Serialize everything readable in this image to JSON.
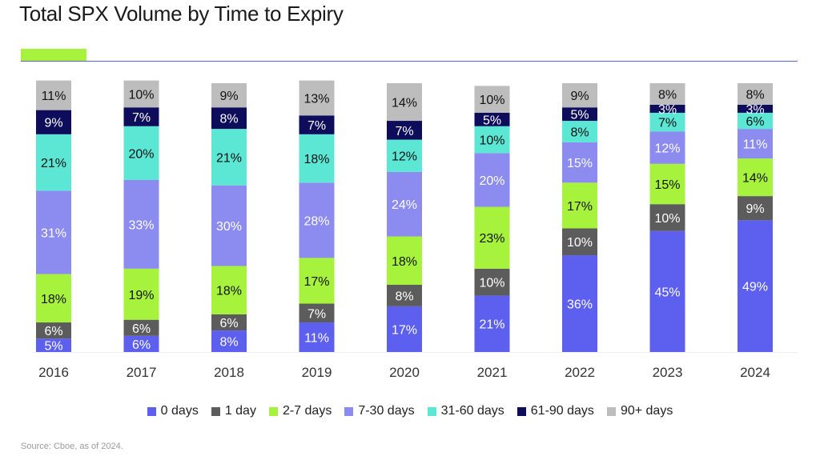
{
  "title": "Total SPX Volume by Time to Expiry",
  "source": "Source: Cboe, as of 2024.",
  "colors": {
    "accent": "#A6F23C",
    "rule": "#5D5FEF"
  },
  "chart_data": {
    "type": "bar",
    "stacked": true,
    "title": "Total SPX Volume by Time to Expiry",
    "xlabel": "",
    "ylabel": "",
    "ylim": [
      0,
      100
    ],
    "grid": false,
    "legend_position": "bottom",
    "categories": [
      "2016",
      "2017",
      "2018",
      "2019",
      "2020",
      "2021",
      "2022",
      "2023",
      "2024"
    ],
    "series": [
      {
        "name": "0 days",
        "color": "#5D5FEF",
        "label_color": "#ffffff",
        "values": [
          5,
          6,
          8,
          11,
          17,
          21,
          36,
          45,
          49
        ]
      },
      {
        "name": "1 day",
        "color": "#5C5C5C",
        "label_color": "#ffffff",
        "values": [
          6,
          6,
          6,
          7,
          8,
          10,
          10,
          10,
          9
        ]
      },
      {
        "name": "2-7 days",
        "color": "#A6F23C",
        "label_color": "#111111",
        "values": [
          18,
          19,
          18,
          17,
          18,
          23,
          17,
          15,
          14
        ]
      },
      {
        "name": "7-30 days",
        "color": "#8B8BF0",
        "label_color": "#ffffff",
        "values": [
          31,
          33,
          30,
          28,
          24,
          20,
          15,
          12,
          11
        ]
      },
      {
        "name": "31-60 days",
        "color": "#5CE6D4",
        "label_color": "#111111",
        "values": [
          21,
          20,
          21,
          18,
          12,
          10,
          8,
          7,
          6
        ]
      },
      {
        "name": "61-90 days",
        "color": "#0D0D5C",
        "label_color": "#ffffff",
        "values": [
          9,
          7,
          8,
          7,
          7,
          5,
          5,
          3,
          3
        ]
      },
      {
        "name": "90+ days",
        "color": "#BDBDBD",
        "label_color": "#111111",
        "values": [
          11,
          10,
          9,
          13,
          14,
          10,
          9,
          8,
          8
        ]
      }
    ]
  }
}
